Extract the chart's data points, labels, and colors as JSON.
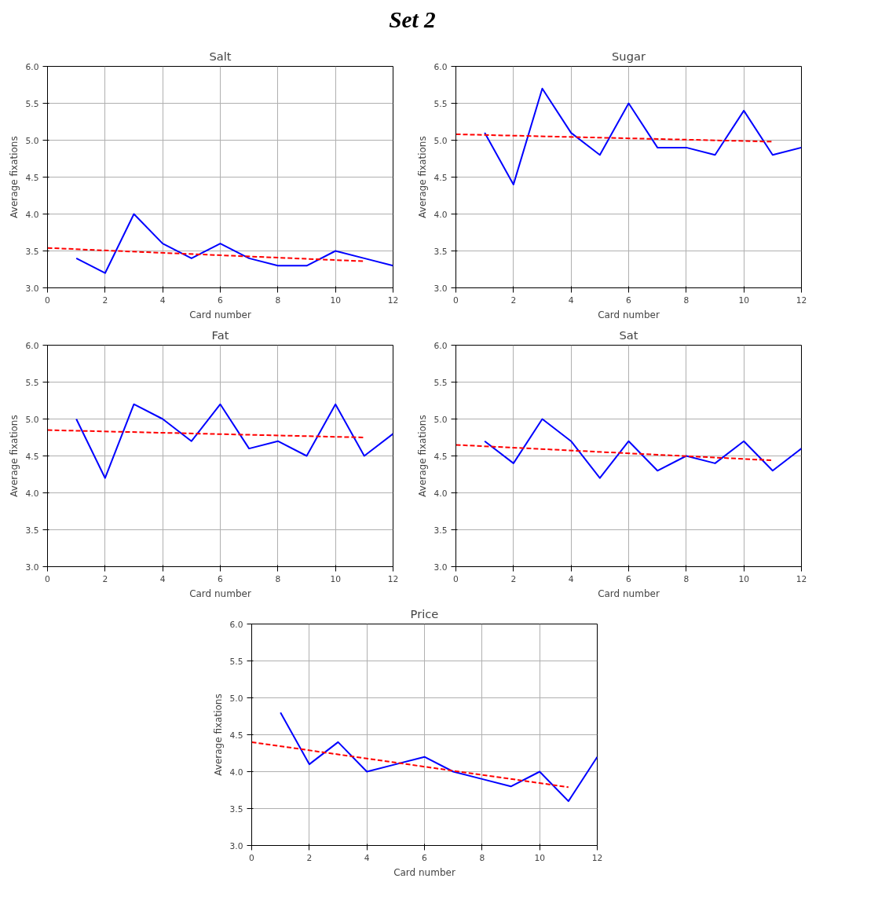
{
  "chart_data": [
    {
      "type": "line",
      "title": "Salt",
      "annotations": [
        "Set 2"
      ],
      "xlabel": "Card number",
      "ylabel": "Average fixations",
      "xlim": [
        0,
        12
      ],
      "ylim": [
        3,
        6
      ],
      "xticks": [
        0,
        2,
        4,
        6,
        8,
        10,
        12
      ],
      "yticks": [
        {
          "value": 3,
          "label": "3.0"
        },
        {
          "value": 3.5,
          "label": "3.5"
        },
        {
          "value": 4,
          "label": "4.0"
        },
        {
          "value": 4.5,
          "label": "4.5"
        },
        {
          "value": 5,
          "label": "5.0"
        },
        {
          "value": 5.5,
          "label": "5.5"
        },
        {
          "value": 6,
          "label": "6.0"
        }
      ],
      "grid": true,
      "series": [
        {
          "color": "#0000ff",
          "x": [
            1,
            2,
            3,
            4,
            5,
            6,
            7,
            8,
            9,
            10,
            11,
            12
          ],
          "values": [
            3.4,
            3.2,
            4.0,
            3.6,
            3.4,
            3.6,
            3.4,
            3.3,
            3.3,
            3.5,
            3.4,
            3.3
          ]
        },
        {
          "color": "#ff0000",
          "line_style": "dashed",
          "x": [
            0,
            11
          ],
          "values": [
            3.54,
            3.36
          ]
        }
      ]
    },
    {
      "type": "line",
      "title": "Sugar",
      "xlabel": "Card number",
      "ylabel": "Average fixations",
      "xlim": [
        0,
        12
      ],
      "ylim": [
        3,
        6
      ],
      "xticks": [
        0,
        2,
        4,
        6,
        8,
        10,
        12
      ],
      "yticks": [
        {
          "value": 3,
          "label": "3.0"
        },
        {
          "value": 3.5,
          "label": "3.5"
        },
        {
          "value": 4,
          "label": "4.0"
        },
        {
          "value": 4.5,
          "label": "4.5"
        },
        {
          "value": 5,
          "label": "5.0"
        },
        {
          "value": 5.5,
          "label": "5.5"
        },
        {
          "value": 6,
          "label": "6.0"
        }
      ],
      "grid": true,
      "series": [
        {
          "color": "#0000ff",
          "x": [
            1,
            2,
            3,
            4,
            5,
            6,
            7,
            8,
            9,
            10,
            11,
            12
          ],
          "values": [
            5.1,
            4.4,
            5.7,
            5.1,
            4.8,
            5.5,
            4.9,
            4.9,
            4.8,
            5.4,
            4.8,
            4.9
          ]
        },
        {
          "color": "#ff0000",
          "line_style": "dashed",
          "x": [
            0,
            11
          ],
          "values": [
            5.08,
            4.98
          ]
        }
      ]
    },
    {
      "type": "line",
      "title": "Fat",
      "xlabel": "Card number",
      "ylabel": "Average fixations",
      "xlim": [
        0,
        12
      ],
      "ylim": [
        3,
        6
      ],
      "xticks": [
        0,
        2,
        4,
        6,
        8,
        10,
        12
      ],
      "yticks": [
        {
          "value": 3,
          "label": "3.0"
        },
        {
          "value": 3.5,
          "label": "3.5"
        },
        {
          "value": 4,
          "label": "4.0"
        },
        {
          "value": 4.5,
          "label": "4.5"
        },
        {
          "value": 5,
          "label": "5.0"
        },
        {
          "value": 5.5,
          "label": "5.5"
        },
        {
          "value": 6,
          "label": "6.0"
        }
      ],
      "grid": true,
      "series": [
        {
          "color": "#0000ff",
          "x": [
            1,
            2,
            3,
            4,
            5,
            6,
            7,
            8,
            9,
            10,
            11,
            12
          ],
          "values": [
            5.0,
            4.2,
            5.2,
            5.0,
            4.7,
            5.2,
            4.6,
            4.7,
            4.5,
            5.2,
            4.5,
            4.8
          ]
        },
        {
          "color": "#ff0000",
          "line_style": "dashed",
          "x": [
            0,
            11
          ],
          "values": [
            4.85,
            4.75
          ]
        }
      ]
    },
    {
      "type": "line",
      "title": "Sat",
      "xlabel": "Card number",
      "ylabel": "Average fixations",
      "xlim": [
        0,
        12
      ],
      "ylim": [
        3,
        6
      ],
      "xticks": [
        0,
        2,
        4,
        6,
        8,
        10,
        12
      ],
      "yticks": [
        {
          "value": 3,
          "label": "3.0"
        },
        {
          "value": 3.5,
          "label": "3.5"
        },
        {
          "value": 4,
          "label": "4.0"
        },
        {
          "value": 4.5,
          "label": "4.5"
        },
        {
          "value": 5,
          "label": "5.0"
        },
        {
          "value": 5.5,
          "label": "5.5"
        },
        {
          "value": 6,
          "label": "6.0"
        }
      ],
      "grid": true,
      "series": [
        {
          "color": "#0000ff",
          "x": [
            1,
            2,
            3,
            4,
            5,
            6,
            7,
            8,
            9,
            10,
            11,
            12
          ],
          "values": [
            4.7,
            4.4,
            5.0,
            4.7,
            4.2,
            4.7,
            4.3,
            4.5,
            4.4,
            4.7,
            4.3,
            4.6
          ]
        },
        {
          "color": "#ff0000",
          "line_style": "dashed",
          "x": [
            0,
            11
          ],
          "values": [
            4.65,
            4.44
          ]
        }
      ]
    },
    {
      "type": "line",
      "title": "Price",
      "xlabel": "Card number",
      "ylabel": "Average fixations",
      "xlim": [
        0,
        12
      ],
      "ylim": [
        3,
        6
      ],
      "xticks": [
        0,
        2,
        4,
        6,
        8,
        10,
        12
      ],
      "yticks": [
        {
          "value": 3,
          "label": "3.0"
        },
        {
          "value": 3.5,
          "label": "3.5"
        },
        {
          "value": 4,
          "label": "4.0"
        },
        {
          "value": 4.5,
          "label": "4.5"
        },
        {
          "value": 5,
          "label": "5.0"
        },
        {
          "value": 5.5,
          "label": "5.5"
        },
        {
          "value": 6,
          "label": "6.0"
        }
      ],
      "grid": true,
      "series": [
        {
          "color": "#0000ff",
          "x": [
            1,
            2,
            3,
            4,
            5,
            6,
            7,
            8,
            9,
            10,
            11,
            12
          ],
          "values": [
            4.8,
            4.1,
            4.4,
            4.0,
            4.1,
            4.2,
            4.0,
            3.9,
            3.8,
            4.0,
            3.6,
            4.2
          ]
        },
        {
          "color": "#ff0000",
          "line_style": "dashed",
          "x": [
            0,
            11
          ],
          "values": [
            4.4,
            3.79
          ]
        }
      ]
    }
  ]
}
